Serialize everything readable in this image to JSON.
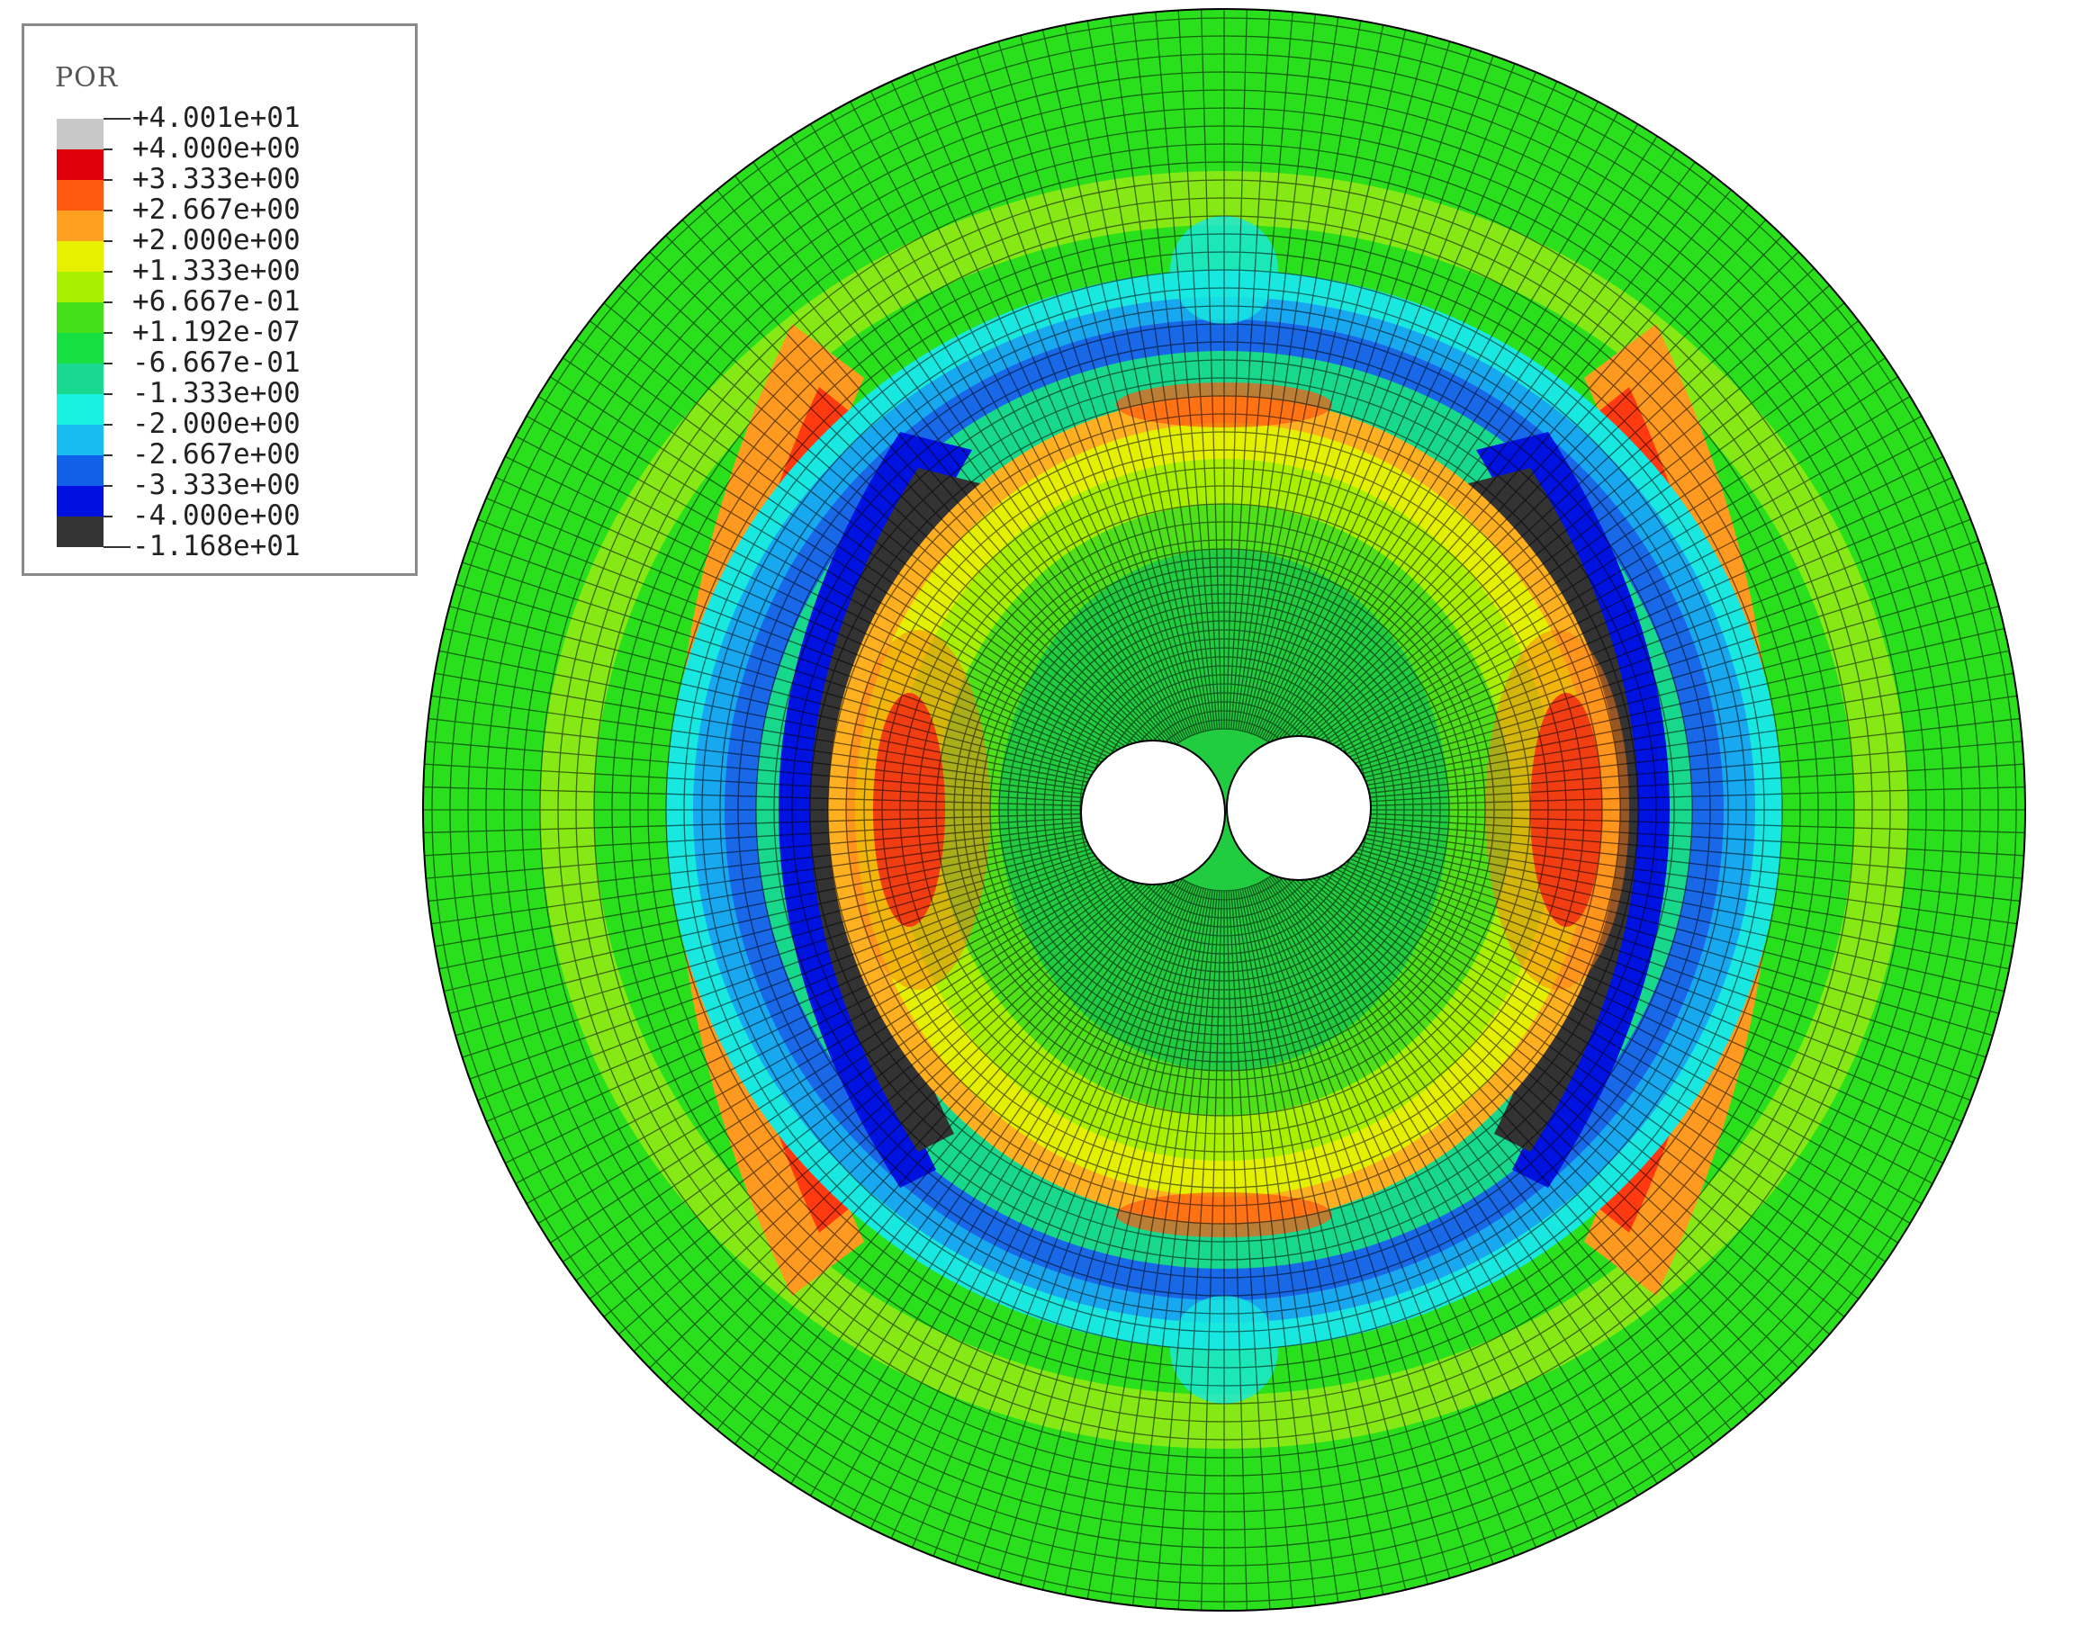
{
  "legend": {
    "title": "POR",
    "labels": [
      "+4.001e+01",
      "+4.000e+00",
      "+3.333e+00",
      "+2.667e+00",
      "+2.000e+00",
      "+1.333e+00",
      "+6.667e-01",
      "+1.192e-07",
      "-6.667e-01",
      "-1.333e+00",
      "-2.000e+00",
      "-2.667e+00",
      "-3.333e+00",
      "-4.000e+00",
      "-1.168e+01"
    ],
    "colors": [
      "#c8c8c8",
      "#e0000a",
      "#ff5a10",
      "#ffa020",
      "#e6f000",
      "#a6f000",
      "#46e01a",
      "#18e040",
      "#1ad890",
      "#18f0e0",
      "#18bcf0",
      "#1060e8",
      "#0010e0",
      "#333333"
    ]
  }
}
